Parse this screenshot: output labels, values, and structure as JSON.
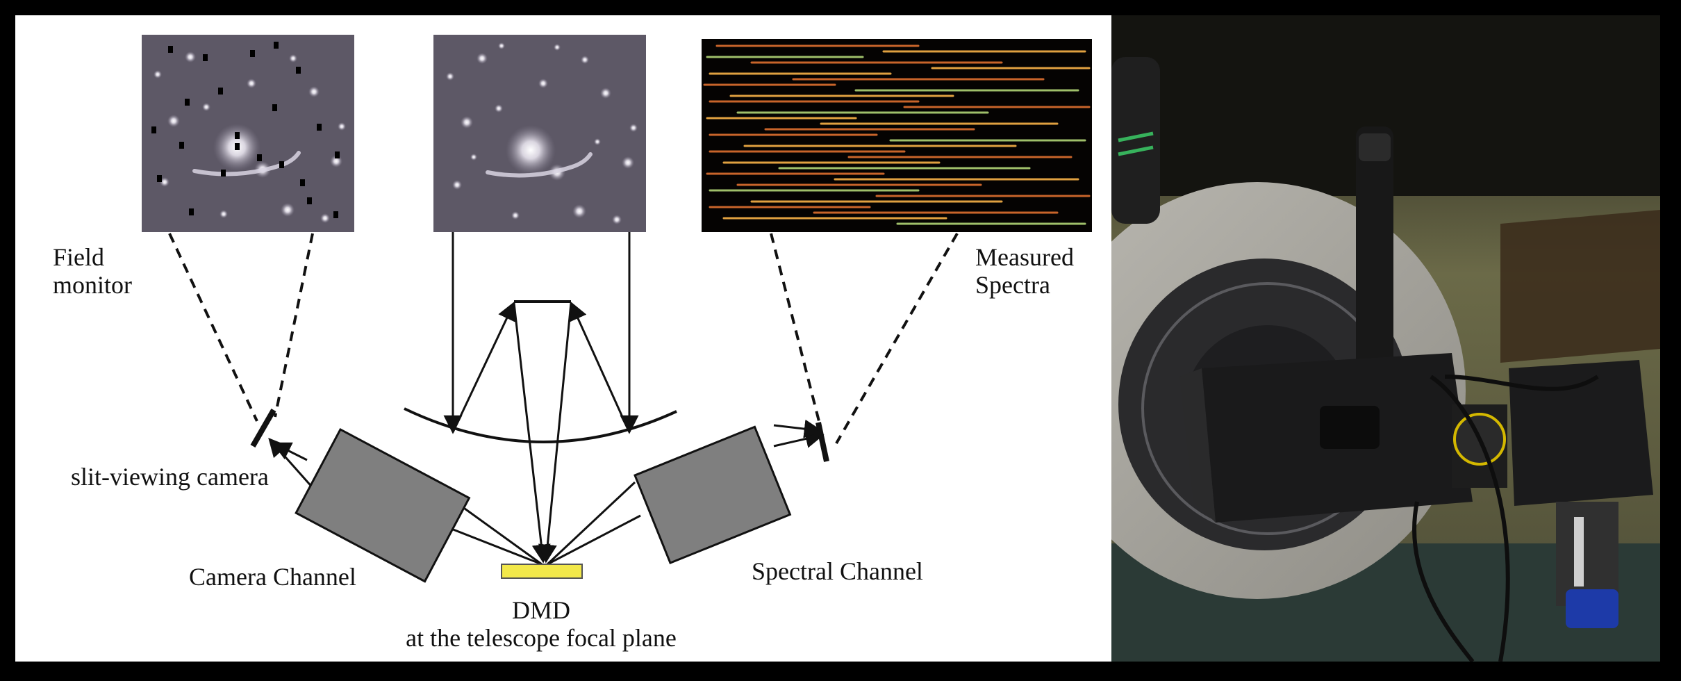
{
  "labels": {
    "field_monitor_line1": "Field",
    "field_monitor_line2": "monitor",
    "measured_spectra_line1": "Measured",
    "measured_spectra_line2": "Spectra",
    "slit_viewing_camera": "slit-viewing camera",
    "camera_channel": "Camera Channel",
    "spectral_channel": "Spectral Channel",
    "dmd_line1": "DMD",
    "dmd_line2": "at the telescope focal plane"
  },
  "colors": {
    "panel_bg": "#ffffff",
    "outer_bg": "#000000",
    "channel_box": "#7f7f7f",
    "dmd": "#f2e84a",
    "star_field": "#5d5866",
    "spectra_bg": "#050302",
    "spectra_stripe_1": "#c8642a",
    "spectra_stripe_2": "#e0a040",
    "spectra_stripe_3": "#9fbf6a"
  },
  "icons": {
    "field_monitor_image": "star-field-with-masked-pixels",
    "sky_image": "star-field",
    "spectra_image": "measured-spectra-stripes",
    "hardware_photo": "instrument-mounted-on-telescope"
  }
}
